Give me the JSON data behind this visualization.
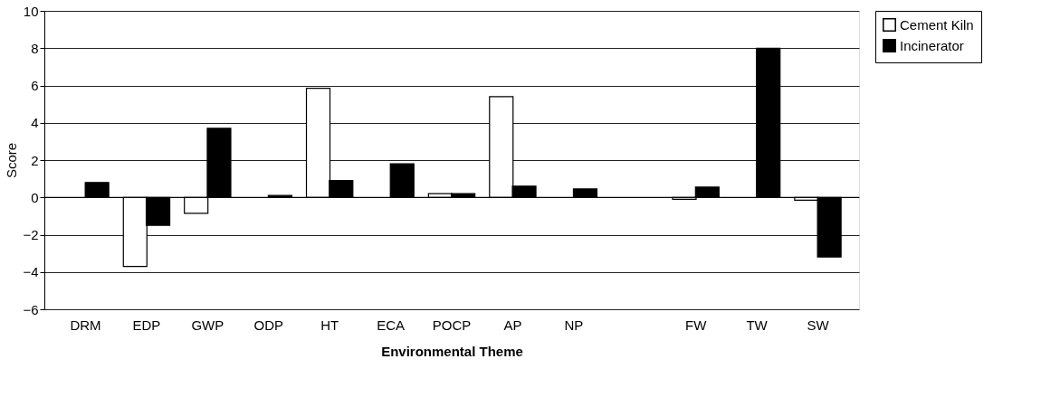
{
  "chart_data": {
    "type": "bar",
    "xlabel": "Environmental Theme",
    "ylabel": "Score",
    "categories": [
      "DRM",
      "EDP",
      "GWP",
      "ODP",
      "HT",
      "ECA",
      "POCP",
      "AP",
      "NP",
      null,
      "FW",
      "TW",
      "SW"
    ],
    "series": [
      {
        "name": "Cement Kiln",
        "color": "#ffffff",
        "values": [
          null,
          -3.7,
          -0.85,
          null,
          5.85,
          null,
          0.2,
          5.4,
          null,
          null,
          -0.1,
          null,
          -0.15
        ]
      },
      {
        "name": "Incinerator",
        "color": "#000000",
        "values": [
          0.8,
          -1.5,
          3.7,
          0.1,
          0.9,
          1.8,
          0.2,
          0.6,
          0.45,
          null,
          0.55,
          8.0,
          -3.2
        ]
      }
    ],
    "ylim": [
      -6,
      10
    ],
    "yticks": [
      -6,
      -4,
      -2,
      0,
      2,
      4,
      6,
      8,
      10
    ],
    "grid": "y",
    "legend": "right"
  }
}
